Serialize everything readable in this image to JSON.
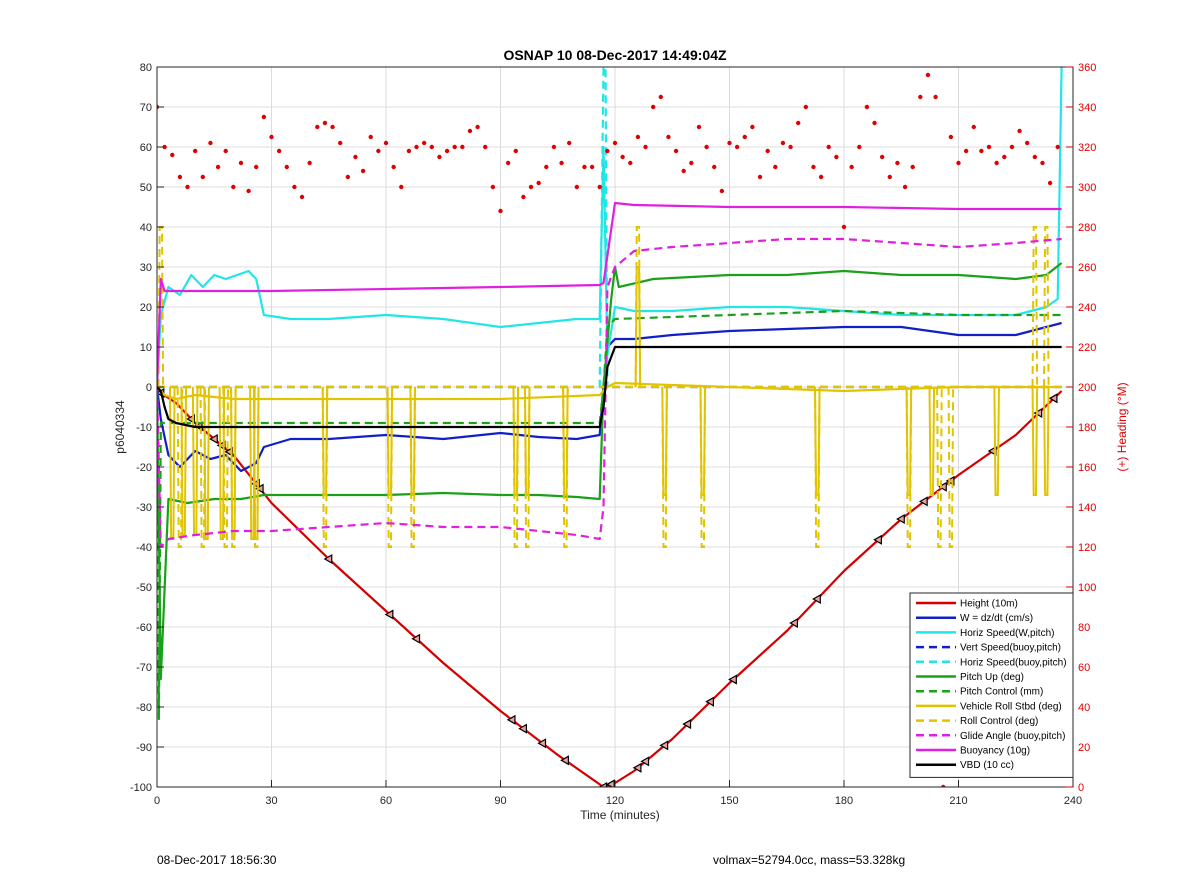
{
  "chart_data": {
    "type": "line",
    "title": "OSNAP 10 08-Dec-2017 14:49:04Z",
    "xlabel": "Time (minutes)",
    "ylabel": "p6040334",
    "y2label": "(+) Heading (°M)",
    "xlim": [
      0,
      240
    ],
    "ylim": [
      -100,
      80
    ],
    "y2lim": [
      0,
      360
    ],
    "xticks": [
      0,
      30,
      60,
      90,
      120,
      150,
      180,
      210,
      240
    ],
    "yticks": [
      -100,
      -90,
      -80,
      -70,
      -60,
      -50,
      -40,
      -30,
      -20,
      -10,
      0,
      10,
      20,
      30,
      40,
      50,
      60,
      70,
      80
    ],
    "y2ticks": [
      0,
      20,
      40,
      60,
      80,
      100,
      120,
      140,
      160,
      180,
      200,
      220,
      240,
      260,
      280,
      300,
      320,
      340,
      360
    ],
    "grid": true,
    "legend_position": "bottom-right",
    "series": [
      {
        "name": "Height (10m)",
        "color": "#d40000",
        "style": "solid",
        "axis": "left",
        "x": [
          0,
          1,
          5,
          10,
          20,
          30,
          45,
          60,
          75,
          90,
          105,
          117,
          120,
          125,
          135,
          150,
          165,
          180,
          195,
          210,
          225,
          237
        ],
        "y": [
          0,
          -1.5,
          -4,
          -9,
          -17,
          -29,
          -43,
          -56,
          -69,
          -81,
          -92,
          -100,
          -99,
          -96,
          -88,
          -74,
          -61,
          -46,
          -33,
          -22,
          -12,
          -1
        ],
        "markers": [
          1,
          9,
          11,
          15,
          17,
          19,
          26,
          27,
          45,
          61,
          68,
          93,
          96,
          101,
          107,
          117,
          119,
          126,
          128,
          133,
          139,
          145,
          151,
          167,
          173,
          189,
          195,
          201,
          206,
          208,
          219,
          231,
          235
        ]
      },
      {
        "name": "W = dz/dt (cm/s)",
        "color": "#1020c8",
        "style": "solid",
        "axis": "left",
        "x": [
          0,
          1,
          3,
          6,
          10,
          14,
          18,
          22,
          26,
          28,
          35,
          45,
          60,
          75,
          90,
          100,
          110,
          116,
          117,
          118,
          120,
          125,
          135,
          150,
          165,
          180,
          195,
          210,
          225,
          233,
          237
        ],
        "y": [
          0,
          -8,
          -17,
          -20,
          -16,
          -18,
          -17,
          -21,
          -19,
          -15,
          -13,
          -13,
          -12,
          -13,
          -11.5,
          -12.5,
          -13,
          -12,
          0,
          10,
          12,
          12,
          13,
          14,
          14.5,
          15,
          15,
          13,
          13,
          15,
          16
        ]
      },
      {
        "name": "Horiz Speed(W,pitch)",
        "color": "#22e6e6",
        "style": "solid",
        "axis": "left",
        "x": [
          0,
          1,
          3,
          6,
          9,
          12,
          15,
          18,
          21,
          24,
          26,
          28,
          35,
          45,
          60,
          75,
          90,
          100,
          110,
          116,
          117,
          118,
          120,
          125,
          135,
          150,
          165,
          180,
          195,
          210,
          225,
          233,
          236,
          237
        ],
        "y": [
          0,
          18,
          25,
          23,
          28,
          25,
          28,
          27,
          28,
          29,
          27,
          18,
          17,
          17,
          18,
          17,
          15,
          16,
          17,
          17,
          60,
          8,
          20,
          19,
          19,
          20,
          20,
          19,
          18,
          18,
          18,
          20,
          22,
          80
        ]
      },
      {
        "name": "Vert Speed(buoy,pitch)",
        "color": "#1020c8",
        "style": "dash",
        "axis": "left",
        "x": [
          0,
          237
        ],
        "y": [
          0,
          0
        ]
      },
      {
        "name": "Horiz Speed(buoy,pitch)",
        "color": "#22e6e6",
        "style": "dash",
        "axis": "left",
        "x": [
          0,
          1,
          116,
          117,
          117.5,
          118
        ],
        "y": [
          0,
          0,
          0,
          80,
          80,
          0
        ]
      },
      {
        "name": "Pitch Up (deg)",
        "color": "#1aa01a",
        "style": "solid",
        "axis": "left",
        "x": [
          0,
          1,
          3,
          8,
          15,
          22,
          28,
          35,
          45,
          60,
          75,
          90,
          100,
          110,
          116,
          117,
          119,
          120,
          121,
          130,
          150,
          165,
          180,
          195,
          210,
          225,
          233,
          237
        ],
        "y": [
          0,
          -73,
          -28,
          -29,
          -28,
          -28,
          -27,
          -27,
          -27,
          -27,
          -26.5,
          -27,
          -27,
          -27.5,
          -28,
          0,
          22,
          30,
          25,
          27,
          28,
          28,
          29,
          28,
          28,
          27,
          28,
          31
        ]
      },
      {
        "name": "Pitch Control (mm)",
        "color": "#1aa01a",
        "style": "dash",
        "axis": "left",
        "x": [
          0,
          0.5,
          1,
          5,
          116,
          117,
          118,
          120,
          150,
          180,
          210,
          237
        ],
        "y": [
          0,
          -83,
          -9,
          -9,
          -9,
          0,
          15,
          17,
          18,
          19,
          18,
          18
        ]
      },
      {
        "name": "Vehicle Roll Stbd (deg)",
        "color": "#e0c400",
        "style": "solid",
        "axis": "left",
        "x": [
          0,
          2,
          5,
          10,
          20,
          30,
          60,
          90,
          116,
          118,
          120,
          150,
          180,
          210,
          237
        ],
        "y": [
          0,
          -2,
          -3,
          -2,
          -3,
          -3,
          -3,
          -3,
          -2,
          0,
          1,
          0,
          -1,
          0,
          0
        ],
        "spikes_x": [
          4,
          7,
          10,
          13,
          17,
          20,
          25,
          26,
          44,
          61,
          67,
          94,
          97,
          107,
          126,
          133,
          143,
          173,
          197,
          203,
          220,
          230,
          233
        ],
        "spikes_y": [
          -38,
          -37,
          -37,
          -38,
          -38,
          -38,
          -38,
          -38,
          -27,
          -27,
          -27,
          -27,
          -27,
          -27,
          30,
          -27,
          -27,
          -27,
          -27,
          -27,
          -27,
          -27,
          -27
        ]
      },
      {
        "name": "Roll Control (deg)",
        "color": "#e0c400",
        "style": "dash",
        "axis": "left",
        "x": [
          0,
          237
        ],
        "y": [
          0,
          0
        ],
        "spikes_x": [
          1,
          6,
          12,
          18,
          20,
          26,
          44,
          61,
          67,
          94,
          97,
          107,
          126,
          133,
          143,
          173,
          197,
          205,
          208,
          230,
          233
        ],
        "spikes_y": [
          40,
          -40,
          -40,
          -40,
          -40,
          -40,
          -40,
          -40,
          -40,
          -40,
          -40,
          -40,
          40,
          -40,
          -40,
          -40,
          -40,
          -40,
          -40,
          40,
          40
        ]
      },
      {
        "name": "Glide Angle (buoy,pitch)",
        "color": "#e020e0",
        "style": "dash",
        "axis": "left",
        "x": [
          0,
          1,
          3,
          10,
          20,
          30,
          45,
          60,
          75,
          90,
          100,
          110,
          116,
          117,
          118,
          120,
          125,
          135,
          150,
          165,
          180,
          195,
          210,
          225,
          237
        ],
        "y": [
          0,
          -40,
          -38,
          -37,
          -36,
          -36,
          -35,
          -34,
          -35,
          -35,
          -36,
          -37,
          -38,
          -30,
          25,
          30,
          34,
          35,
          36,
          37,
          37,
          36,
          35,
          36,
          37
        ]
      },
      {
        "name": "Buoyancy (10g)",
        "color": "#e020e0",
        "style": "solid",
        "axis": "left",
        "x": [
          0,
          1,
          2,
          30,
          60,
          90,
          116,
          117,
          120,
          125,
          150,
          180,
          210,
          237
        ],
        "y": [
          0,
          27,
          24,
          24,
          24.5,
          25,
          25.5,
          26,
          46,
          45.5,
          45,
          45,
          44.5,
          44.5
        ]
      },
      {
        "name": "VBD (10 cc)",
        "color": "#000000",
        "style": "solid",
        "axis": "left",
        "x": [
          0,
          1,
          2,
          3,
          5,
          10,
          30,
          60,
          90,
          116,
          117,
          118,
          120,
          150,
          180,
          210,
          237
        ],
        "y": [
          0,
          -1,
          -5,
          -8,
          -9,
          -10,
          -10,
          -10,
          -10,
          -10,
          -5,
          5,
          10,
          10,
          10,
          10,
          10
        ]
      },
      {
        "name": "Heading",
        "color": "#e00000",
        "style": "points",
        "axis": "right",
        "x": [
          0,
          2,
          4,
          6,
          8,
          10,
          12,
          14,
          16,
          18,
          20,
          22,
          24,
          26,
          28,
          30,
          32,
          34,
          36,
          38,
          40,
          42,
          44,
          46,
          48,
          50,
          52,
          54,
          56,
          58,
          60,
          62,
          64,
          66,
          68,
          70,
          72,
          74,
          76,
          78,
          80,
          82,
          84,
          86,
          88,
          90,
          92,
          94,
          96,
          98,
          100,
          102,
          104,
          106,
          108,
          110,
          112,
          114,
          116,
          118,
          120,
          122,
          124,
          126,
          128,
          130,
          132,
          134,
          136,
          138,
          140,
          142,
          144,
          146,
          148,
          150,
          152,
          154,
          156,
          158,
          160,
          162,
          164,
          166,
          168,
          170,
          172,
          174,
          176,
          178,
          180,
          182,
          184,
          186,
          188,
          190,
          192,
          194,
          196,
          198,
          200,
          202,
          204,
          206,
          208,
          210,
          212,
          214,
          216,
          218,
          220,
          222,
          224,
          226,
          228,
          230,
          232,
          234,
          236
        ],
        "y": [
          340,
          320,
          316,
          305,
          300,
          318,
          305,
          322,
          310,
          318,
          300,
          312,
          298,
          310,
          335,
          325,
          318,
          310,
          300,
          295,
          312,
          330,
          332,
          330,
          322,
          305,
          315,
          308,
          325,
          318,
          322,
          310,
          300,
          318,
          320,
          322,
          320,
          315,
          318,
          320,
          320,
          328,
          330,
          320,
          300,
          288,
          312,
          318,
          295,
          300,
          302,
          310,
          320,
          312,
          322,
          300,
          310,
          310,
          300,
          318,
          322,
          315,
          312,
          325,
          320,
          340,
          345,
          325,
          318,
          308,
          312,
          330,
          320,
          310,
          298,
          322,
          320,
          325,
          330,
          305,
          318,
          310,
          322,
          320,
          332,
          340,
          310,
          305,
          320,
          315,
          280,
          310,
          320,
          340,
          332,
          315,
          305,
          312,
          300,
          310,
          345,
          356,
          345,
          0,
          325,
          312,
          318,
          330,
          318,
          320,
          312,
          315,
          320,
          328,
          322,
          315,
          312,
          302,
          320
        ]
      }
    ]
  },
  "footer": {
    "date": "08-Dec-2017 18:56:30",
    "vol_mass": "volmax=52794.0cc, mass=53.328kg"
  }
}
